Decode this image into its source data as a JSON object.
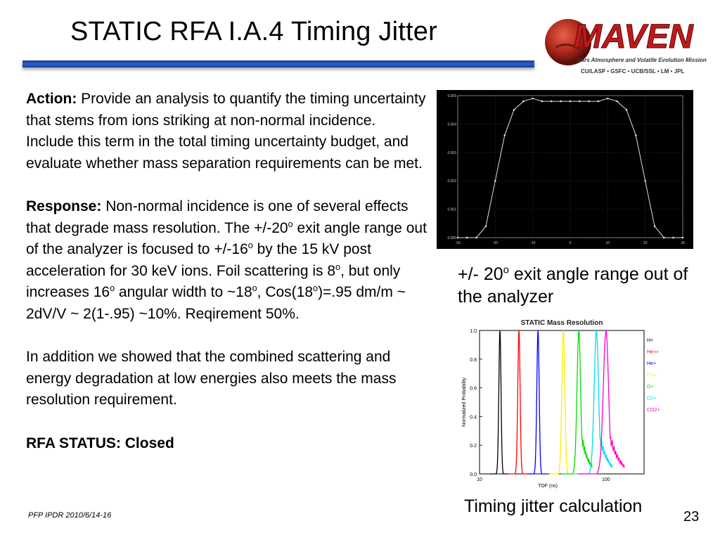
{
  "title": "STATIC RFA I.A.4 Timing Jitter",
  "logo": {
    "name": "MAVEN",
    "subtitle": "Mars Atmosphere and Volatile Evolution Mission",
    "partners": "CU/LASP • GSFC • UCB/SSL • LM • JPL"
  },
  "action": {
    "label": "Action:",
    "text": "Provide an analysis to quantify the timing uncertainty that stems from ions striking at non-normal incidence. Include this term in the total timing uncertainty budget, and evaluate whether mass separation requirements can be met."
  },
  "response": {
    "label": "Response:",
    "t1": "Non-normal incidence is one of several effects that degrade mass resolution. The +/-20",
    "t2": " exit angle range out of the analyzer is focused to +/-16",
    "t3": " by the 15 kV post acceleration for 30 keV ions. Foil scattering is 8",
    "t4": ", but only increases 16",
    "t5": " angular width to ~18",
    "t6": ", Cos(18",
    "t7": ")=.95 dm/m ~ 2dV/V ~ 2(1-.95) ~10%. Reqirement 50%.",
    "sup": "o"
  },
  "combined": "In addition we showed that the combined scattering and energy degradation at low energies also meets the mass resolution requirement.",
  "status": "RFA STATUS: Closed",
  "footer": "PFP IPDR 2010/6/14-16",
  "page_number": "23",
  "caption1": {
    "t1": "+/- 20",
    "sup": "o",
    "t2": " exit angle range out of the analyzer"
  },
  "caption2": "Timing jitter calculation",
  "chart_data": [
    {
      "type": "line",
      "x": [
        -30,
        -27.5,
        -25,
        -22.5,
        -20,
        -17.5,
        -15,
        -12.5,
        -10,
        -7.5,
        -5,
        -2.5,
        0,
        2.5,
        5,
        7.5,
        10,
        12.5,
        15,
        17.5,
        20,
        22.5,
        25,
        27.5,
        30
      ],
      "series": [
        {
          "values": [
            0.0,
            0.0,
            0.0,
            0.0004,
            0.002,
            0.0036,
            0.0045,
            0.0048,
            0.0049,
            0.0048,
            0.0048,
            0.0048,
            0.0048,
            0.0048,
            0.0048,
            0.0048,
            0.0049,
            0.0048,
            0.0045,
            0.0036,
            0.002,
            0.0004,
            0.0,
            0.0,
            0.0
          ]
        }
      ],
      "xlim": [
        -30,
        30
      ],
      "ylim": [
        0,
        0.005
      ],
      "xticks": [
        "-30",
        "-20",
        "-10",
        "0",
        "10",
        "20",
        "30"
      ],
      "yticks": [
        "0.000",
        "0.001",
        "0.002",
        "0.003",
        "0.004",
        "0.005"
      ],
      "grid": true
    },
    {
      "type": "line",
      "title": "STATIC Mass Resolution",
      "xlabel": "TOF (ns)",
      "ylabel": "Normalized Probability",
      "xscale": "log",
      "xlim": [
        10,
        200
      ],
      "ylim": [
        0,
        1.0
      ],
      "xticks": [
        "10",
        "100"
      ],
      "yticks": [
        "0.0",
        "0.2",
        "0.4",
        "0.6",
        "0.8",
        "1.0"
      ],
      "legend_position": "top-right",
      "series": [
        {
          "name": "H+",
          "color": "#000000",
          "center": 14.5,
          "width": 0.6
        },
        {
          "name": "He++",
          "color": "#ff0000",
          "center": 20.5,
          "width": 0.9
        },
        {
          "name": "He+",
          "color": "#0000ff",
          "center": 29,
          "width": 1.3
        },
        {
          "name": "O++",
          "color": "#ffee00",
          "center": 46,
          "width": 2.6
        },
        {
          "name": "O+",
          "color": "#00dd00",
          "center": 61,
          "width": 4.2
        },
        {
          "name": "O2+",
          "color": "#00ddee",
          "center": 84,
          "width": 7
        },
        {
          "name": "CO2+",
          "color": "#ff00cc",
          "center": 100,
          "width": 10
        }
      ]
    }
  ]
}
